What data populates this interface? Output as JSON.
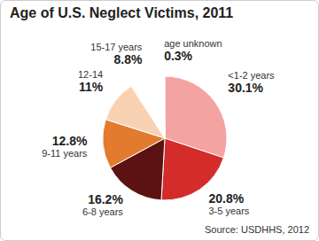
{
  "chart_data": {
    "type": "pie",
    "title": "Age of U.S. Neglect Victims, 2011",
    "source": "Source: USDHHS, 2012",
    "categories": [
      "<1-2 years",
      "3-5 years",
      "6-8 years",
      "9-11 years",
      "12-14",
      "15-17 years",
      "age unknown"
    ],
    "values": [
      30.1,
      20.8,
      16.2,
      12.8,
      11,
      8.8,
      0.3
    ],
    "value_labels": [
      "30.1%",
      "20.8%",
      "16.2%",
      "12.8%",
      "11%",
      "8.8%",
      "0.3%"
    ],
    "colors": [
      "#f4a3a3",
      "#d42b2b",
      "#5c1212",
      "#e37b2e",
      "#f9d2b4",
      "#ffffff",
      "#ffffff"
    ],
    "data_labels": true
  }
}
